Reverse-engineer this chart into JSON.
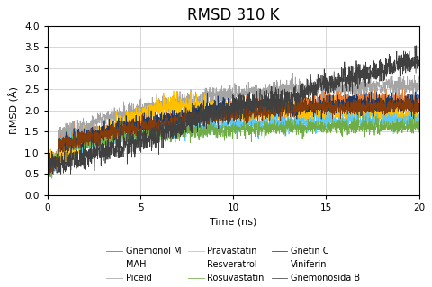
{
  "title": "RMSD 310 K",
  "xlabel": "Time (ns)",
  "ylabel": "RMSD (Å)",
  "xlim": [
    0,
    20
  ],
  "ylim": [
    0,
    4
  ],
  "yticks": [
    0,
    0.5,
    1.0,
    1.5,
    2.0,
    2.5,
    3.0,
    3.5,
    4.0
  ],
  "xticks": [
    0,
    5,
    10,
    15,
    20
  ],
  "series": [
    {
      "name": "Gnemonol M",
      "color": "#4472C4",
      "start": 0.9,
      "mid": 1.7,
      "final": 2.1,
      "noise": 0.09,
      "corr": 0.002
    },
    {
      "name": "MAH",
      "color": "#ED7D31",
      "start": 0.95,
      "mid": 1.75,
      "final": 2.2,
      "noise": 0.1,
      "corr": 0.003
    },
    {
      "name": "Piceid",
      "color": "#A5A5A5",
      "start": 0.9,
      "mid": 1.8,
      "final": 2.6,
      "noise": 0.1,
      "corr": 0.003
    },
    {
      "name": "Pravastatin",
      "color": "#FFC000",
      "start": 0.9,
      "mid": 1.9,
      "final": 1.8,
      "noise": 0.12,
      "corr": 0.003
    },
    {
      "name": "Resveratrol",
      "color": "#5BC8F5",
      "start": 0.9,
      "mid": 1.65,
      "final": 1.75,
      "noise": 0.09,
      "corr": 0.002
    },
    {
      "name": "Rosuvastatin",
      "color": "#70AD47",
      "start": 0.9,
      "mid": 1.55,
      "final": 1.65,
      "noise": 0.09,
      "corr": 0.002
    },
    {
      "name": "Gnetin C",
      "color": "#1F3864",
      "start": 0.9,
      "mid": 1.8,
      "final": 2.15,
      "noise": 0.1,
      "corr": 0.002
    },
    {
      "name": "Viniferin",
      "color": "#843C0C",
      "start": 0.9,
      "mid": 1.65,
      "final": 2.05,
      "noise": 0.09,
      "corr": 0.002
    },
    {
      "name": "Gnemonosida B",
      "color": "#404040",
      "start": 0.85,
      "mid": 2.0,
      "final": 3.1,
      "noise": 0.14,
      "corr": 0.005
    }
  ],
  "n_points": 2000,
  "background_color": "#FFFFFF",
  "grid_color": "#C8C8C8",
  "title_fontsize": 12,
  "label_fontsize": 8,
  "tick_fontsize": 7.5,
  "legend_fontsize": 7,
  "legend_order": [
    "Gnemonol M",
    "MAH",
    "Piceid",
    "Pravastatin",
    "Resveratrol",
    "Rosuvastatin",
    "Gnetin C",
    "Viniferin",
    "Gnemonosida B"
  ]
}
